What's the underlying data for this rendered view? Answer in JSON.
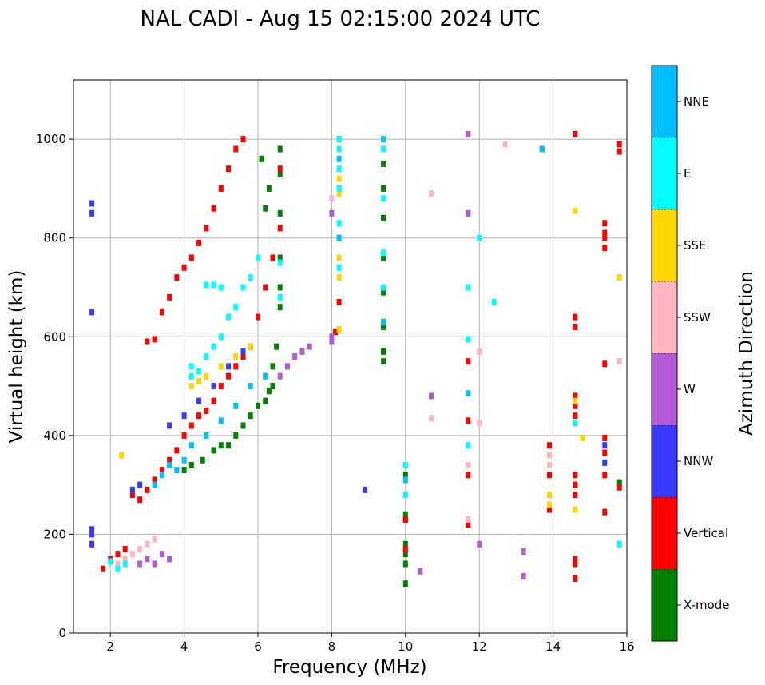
{
  "chart_data": {
    "type": "scatter",
    "title": "NAL CADI - Aug 15 02:15:00 2024 UTC",
    "xlabel": "Frequency (MHz)",
    "ylabel": "Virtual height (km)",
    "xlim": [
      1,
      16
    ],
    "ylim": [
      0,
      1120
    ],
    "xticks": [
      2,
      4,
      6,
      8,
      10,
      12,
      14,
      16
    ],
    "yticks": [
      0,
      200,
      400,
      600,
      800,
      1000
    ],
    "grid": true,
    "colorbar": {
      "label": "Azimuth Direction",
      "categories": [
        {
          "name": "X-mode",
          "color": "#008000"
        },
        {
          "name": "Vertical",
          "color": "#ff0000"
        },
        {
          "name": "NNW",
          "color": "#3a3aff"
        },
        {
          "name": "W",
          "color": "#b35bd6"
        },
        {
          "name": "SSW",
          "color": "#ffb6c1"
        },
        {
          "name": "SSE",
          "color": "#ffd700"
        },
        {
          "name": "E",
          "color": "#00ffff"
        },
        {
          "name": "NNE",
          "color": "#00bfff"
        }
      ]
    },
    "series": [
      {
        "name": "X-mode",
        "points": [
          [
            10.0,
            100
          ],
          [
            10.0,
            140
          ],
          [
            10.0,
            160
          ],
          [
            10.0,
            180
          ],
          [
            10.0,
            230
          ],
          [
            10.0,
            240
          ],
          [
            10.0,
            320
          ],
          [
            9.4,
            550
          ],
          [
            9.4,
            570
          ],
          [
            9.4,
            620
          ],
          [
            9.4,
            690
          ],
          [
            9.4,
            760
          ],
          [
            9.4,
            840
          ],
          [
            9.4,
            900
          ],
          [
            9.4,
            950
          ],
          [
            6.6,
            930
          ],
          [
            6.6,
            850
          ],
          [
            6.6,
            760
          ],
          [
            6.6,
            700
          ],
          [
            6.6,
            660
          ],
          [
            6.5,
            580
          ],
          [
            6.4,
            540
          ],
          [
            6.4,
            500
          ],
          [
            6.3,
            490
          ],
          [
            6.2,
            470
          ],
          [
            6.0,
            460
          ],
          [
            5.8,
            440
          ],
          [
            5.6,
            420
          ],
          [
            5.4,
            400
          ],
          [
            5.2,
            380
          ],
          [
            5.0,
            380
          ],
          [
            4.8,
            370
          ],
          [
            4.5,
            350
          ],
          [
            4.2,
            340
          ],
          [
            4.0,
            330
          ],
          [
            6.2,
            860
          ],
          [
            6.3,
            900
          ],
          [
            6.1,
            960
          ],
          [
            6.6,
            980
          ],
          [
            14.6,
            300
          ],
          [
            15.8,
            305
          ]
        ]
      },
      {
        "name": "Vertical",
        "points": [
          [
            1.8,
            130
          ],
          [
            2.0,
            150
          ],
          [
            2.2,
            160
          ],
          [
            2.4,
            170
          ],
          [
            2.6,
            280
          ],
          [
            2.8,
            270
          ],
          [
            3.0,
            290
          ],
          [
            3.2,
            310
          ],
          [
            3.4,
            330
          ],
          [
            3.6,
            350
          ],
          [
            3.8,
            370
          ],
          [
            4.0,
            400
          ],
          [
            4.2,
            420
          ],
          [
            4.4,
            440
          ],
          [
            4.6,
            450
          ],
          [
            4.8,
            470
          ],
          [
            5.0,
            500
          ],
          [
            5.2,
            520
          ],
          [
            5.4,
            540
          ],
          [
            5.6,
            560
          ],
          [
            5.8,
            580
          ],
          [
            6.0,
            640
          ],
          [
            6.2,
            700
          ],
          [
            6.4,
            760
          ],
          [
            3.4,
            650
          ],
          [
            3.6,
            680
          ],
          [
            3.8,
            720
          ],
          [
            4.0,
            740
          ],
          [
            4.2,
            760
          ],
          [
            4.4,
            790
          ],
          [
            4.6,
            820
          ],
          [
            4.8,
            860
          ],
          [
            5.0,
            900
          ],
          [
            5.2,
            940
          ],
          [
            5.4,
            980
          ],
          [
            5.6,
            1000
          ],
          [
            6.6,
            940
          ],
          [
            6.6,
            820
          ],
          [
            8.2,
            670
          ],
          [
            8.2,
            1000
          ],
          [
            14.6,
            1010
          ],
          [
            14.6,
            640
          ],
          [
            14.6,
            620
          ],
          [
            14.6,
            480
          ],
          [
            14.6,
            460
          ],
          [
            14.6,
            440
          ],
          [
            14.6,
            320
          ],
          [
            14.6,
            300
          ],
          [
            14.6,
            280
          ],
          [
            14.6,
            150
          ],
          [
            14.6,
            140
          ],
          [
            14.6,
            110
          ],
          [
            15.4,
            830
          ],
          [
            15.4,
            810
          ],
          [
            15.4,
            800
          ],
          [
            15.4,
            780
          ],
          [
            15.4,
            545
          ],
          [
            15.4,
            395
          ],
          [
            15.4,
            365
          ],
          [
            15.4,
            320
          ],
          [
            15.4,
            245
          ],
          [
            15.8,
            990
          ],
          [
            15.8,
            975
          ],
          [
            15.8,
            295
          ],
          [
            11.7,
            320
          ],
          [
            11.7,
            220
          ],
          [
            11.7,
            430
          ],
          [
            11.7,
            550
          ],
          [
            13.9,
            380
          ],
          [
            13.9,
            320
          ],
          [
            13.9,
            250
          ],
          [
            10.0,
            230
          ],
          [
            10.0,
            170
          ],
          [
            8.1,
            610
          ],
          [
            3.0,
            590
          ],
          [
            3.2,
            595
          ]
        ]
      },
      {
        "name": "NNW",
        "points": [
          [
            1.5,
            180
          ],
          [
            1.5,
            200
          ],
          [
            1.5,
            210
          ],
          [
            1.5,
            650
          ],
          [
            1.5,
            850
          ],
          [
            1.5,
            870
          ],
          [
            2.6,
            290
          ],
          [
            2.8,
            300
          ],
          [
            3.6,
            420
          ],
          [
            4.0,
            440
          ],
          [
            4.4,
            470
          ],
          [
            4.8,
            500
          ],
          [
            5.2,
            540
          ],
          [
            5.6,
            570
          ],
          [
            8.9,
            290
          ],
          [
            13.7,
            980
          ],
          [
            15.4,
            380
          ],
          [
            15.4,
            345
          ]
        ]
      },
      {
        "name": "W",
        "points": [
          [
            2.8,
            140
          ],
          [
            3.0,
            150
          ],
          [
            3.2,
            140
          ],
          [
            3.4,
            160
          ],
          [
            3.6,
            150
          ],
          [
            7.0,
            560
          ],
          [
            7.2,
            570
          ],
          [
            7.4,
            580
          ],
          [
            6.8,
            540
          ],
          [
            6.6,
            520
          ],
          [
            8.0,
            590
          ],
          [
            8.0,
            600
          ],
          [
            10.4,
            125
          ],
          [
            10.7,
            480
          ],
          [
            11.7,
            850
          ],
          [
            11.7,
            1010
          ],
          [
            12.0,
            180
          ],
          [
            13.2,
            165
          ],
          [
            13.2,
            115
          ],
          [
            8.0,
            850
          ]
        ]
      },
      {
        "name": "SSW",
        "points": [
          [
            2.2,
            140
          ],
          [
            2.4,
            150
          ],
          [
            2.6,
            160
          ],
          [
            2.8,
            170
          ],
          [
            3.0,
            180
          ],
          [
            3.2,
            190
          ],
          [
            13.9,
            340
          ],
          [
            13.9,
            360
          ],
          [
            12.0,
            570
          ],
          [
            12.0,
            425
          ],
          [
            11.7,
            340
          ],
          [
            11.7,
            230
          ],
          [
            10.7,
            435
          ],
          [
            10.7,
            890
          ],
          [
            12.7,
            990
          ],
          [
            8.0,
            880
          ],
          [
            15.8,
            550
          ]
        ]
      },
      {
        "name": "SSE",
        "points": [
          [
            4.2,
            500
          ],
          [
            4.4,
            510
          ],
          [
            4.6,
            520
          ],
          [
            5.0,
            540
          ],
          [
            5.4,
            560
          ],
          [
            5.8,
            580
          ],
          [
            8.2,
            720
          ],
          [
            8.2,
            760
          ],
          [
            8.2,
            890
          ],
          [
            8.2,
            920
          ],
          [
            8.2,
            615
          ],
          [
            14.6,
            470
          ],
          [
            14.6,
            250
          ],
          [
            14.6,
            855
          ],
          [
            14.8,
            395
          ],
          [
            13.9,
            280
          ],
          [
            13.9,
            260
          ],
          [
            15.8,
            720
          ],
          [
            2.3,
            360
          ]
        ]
      },
      {
        "name": "E",
        "points": [
          [
            4.2,
            520
          ],
          [
            4.2,
            540
          ],
          [
            4.4,
            530
          ],
          [
            4.6,
            560
          ],
          [
            4.8,
            580
          ],
          [
            5.0,
            600
          ],
          [
            5.2,
            640
          ],
          [
            5.4,
            660
          ],
          [
            5.6,
            700
          ],
          [
            5.8,
            720
          ],
          [
            6.0,
            760
          ],
          [
            8.2,
            740
          ],
          [
            8.2,
            800
          ],
          [
            8.2,
            830
          ],
          [
            8.2,
            900
          ],
          [
            8.2,
            940
          ],
          [
            8.2,
            980
          ],
          [
            8.2,
            1000
          ],
          [
            9.4,
            980
          ],
          [
            9.4,
            880
          ],
          [
            9.4,
            770
          ],
          [
            9.4,
            700
          ],
          [
            10.0,
            280
          ],
          [
            10.0,
            340
          ],
          [
            11.7,
            700
          ],
          [
            11.7,
            595
          ],
          [
            11.7,
            380
          ],
          [
            12.0,
            800
          ],
          [
            12.4,
            670
          ],
          [
            14.6,
            425
          ],
          [
            15.8,
            180
          ],
          [
            6.6,
            680
          ],
          [
            6.6,
            750
          ],
          [
            4.6,
            705
          ],
          [
            4.8,
            705
          ],
          [
            5.0,
            700
          ],
          [
            2.4,
            140
          ],
          [
            2.0,
            145
          ],
          [
            2.2,
            130
          ]
        ]
      },
      {
        "name": "NNE",
        "points": [
          [
            3.8,
            330
          ],
          [
            4.0,
            350
          ],
          [
            4.2,
            380
          ],
          [
            4.6,
            400
          ],
          [
            5.0,
            430
          ],
          [
            5.4,
            460
          ],
          [
            5.8,
            500
          ],
          [
            6.2,
            520
          ],
          [
            8.2,
            800
          ],
          [
            8.2,
            960
          ],
          [
            9.4,
            1000
          ],
          [
            9.4,
            630
          ],
          [
            10.0,
            310
          ],
          [
            11.7,
            485
          ],
          [
            13.7,
            980
          ],
          [
            3.6,
            340
          ],
          [
            3.4,
            320
          ],
          [
            3.2,
            300
          ]
        ]
      }
    ]
  }
}
